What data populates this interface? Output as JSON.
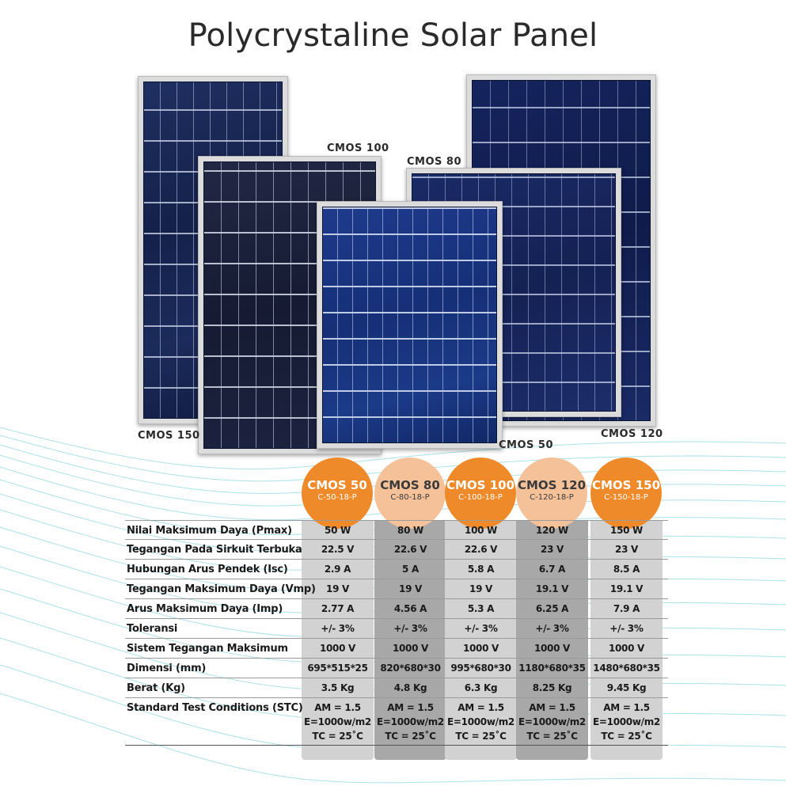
{
  "title": "Polycrystaline Solar Panel",
  "panel_labels": {
    "cmos150": "CMOS 150",
    "cmos100": "CMOS 100",
    "cmos50": "CMOS 50",
    "cmos80": "CMOS 80",
    "cmos120": "CMOS 120"
  },
  "models": [
    {
      "name": "CMOS 50",
      "code": "C-50-18-P",
      "color": "#ef8a2a"
    },
    {
      "name": "CMOS 80",
      "code": "C-80-18-P",
      "color": "#f4c199"
    },
    {
      "name": "CMOS 100",
      "code": "C-100-18-P",
      "color": "#ef8a2a"
    },
    {
      "name": "CMOS 120",
      "code": "C-120-18-P",
      "color": "#f4c199"
    },
    {
      "name": "CMOS 150",
      "code": "C-150-18-P",
      "color": "#ef8a2a"
    }
  ],
  "rows": [
    {
      "label": "Nilai Maksimum Daya (Pmax)",
      "values": [
        "50 W",
        "80 W",
        "100 W",
        "120 W",
        "150 W"
      ]
    },
    {
      "label": "Tegangan Pada Sirkuit Terbuka",
      "values": [
        "22.5 V",
        "22.6 V",
        "22.6 V",
        "23 V",
        "23 V"
      ]
    },
    {
      "label": "Hubungan Arus Pendek (Isc)",
      "values": [
        "2.9 A",
        "5 A",
        "5.8 A",
        "6.7 A",
        "8.5 A"
      ]
    },
    {
      "label": "Tegangan Maksimum Daya (Vmp)",
      "values": [
        "19 V",
        "19 V",
        "19 V",
        "19.1 V",
        "19.1 V"
      ]
    },
    {
      "label": "Arus Maksimum Daya (Imp)",
      "values": [
        "2.77 A",
        "4.56 A",
        "5.3 A",
        "6.25 A",
        "7.9 A"
      ]
    },
    {
      "label": "Toleransi",
      "values": [
        "+/- 3%",
        "+/- 3%",
        "+/- 3%",
        "+/- 3%",
        "+/- 3%"
      ]
    },
    {
      "label": "Sistem Tegangan Maksimum",
      "values": [
        "1000 V",
        "1000 V",
        "1000 V",
        "1000 V",
        "1000 V"
      ]
    },
    {
      "label": "Dimensi (mm)",
      "values": [
        "695*515*25",
        "820*680*30",
        "995*680*30",
        "1180*680*35",
        "1480*680*35"
      ]
    },
    {
      "label": "Berat (Kg)",
      "values": [
        "3.5 Kg",
        "4.8 Kg",
        "6.3 Kg",
        "8.25 Kg",
        "9.45 Kg"
      ]
    }
  ],
  "stc": {
    "label": "Standard Test Conditions (STC)",
    "line1": "AM = 1.5",
    "line2": "E=1000w/m2",
    "line3": "TC = 25˚C"
  }
}
